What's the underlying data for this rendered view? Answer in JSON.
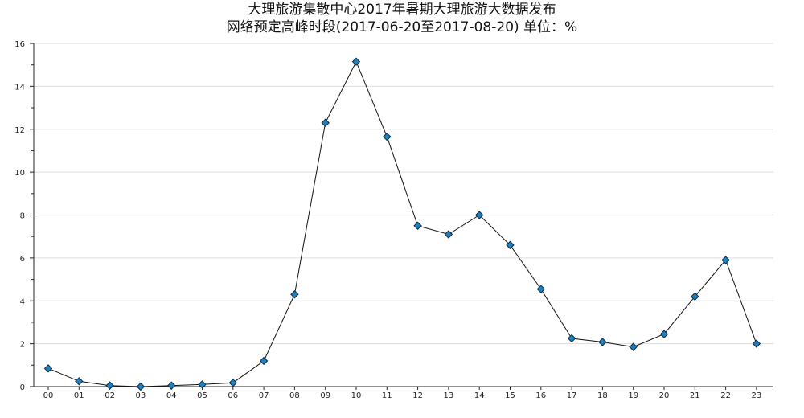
{
  "chart_data": {
    "type": "line",
    "title": "大理旅游集散中心2017年暑期大理旅游大数据发布",
    "subtitle": "网络预定高峰时段(2017-06-20至2017-08-20) 单位：%",
    "xlabel": "",
    "ylabel": "",
    "categories": [
      "00",
      "01",
      "02",
      "03",
      "04",
      "05",
      "06",
      "07",
      "08",
      "09",
      "10",
      "11",
      "12",
      "13",
      "14",
      "15",
      "16",
      "17",
      "18",
      "19",
      "20",
      "21",
      "22",
      "23"
    ],
    "values": [
      0.85,
      0.25,
      0.05,
      0.0,
      0.05,
      0.1,
      0.18,
      1.2,
      4.3,
      12.3,
      15.15,
      11.65,
      7.5,
      7.1,
      8.0,
      6.6,
      4.55,
      2.25,
      2.08,
      1.85,
      2.45,
      4.2,
      5.9,
      2.0
    ],
    "ylim": [
      0,
      16
    ],
    "yticks": [
      0,
      2,
      4,
      6,
      8,
      10,
      12,
      14,
      16
    ],
    "grid": true,
    "legend": "none",
    "colors": {
      "marker": "#1f80c0",
      "line": "#111111",
      "grid": "#dcdcdc"
    }
  }
}
